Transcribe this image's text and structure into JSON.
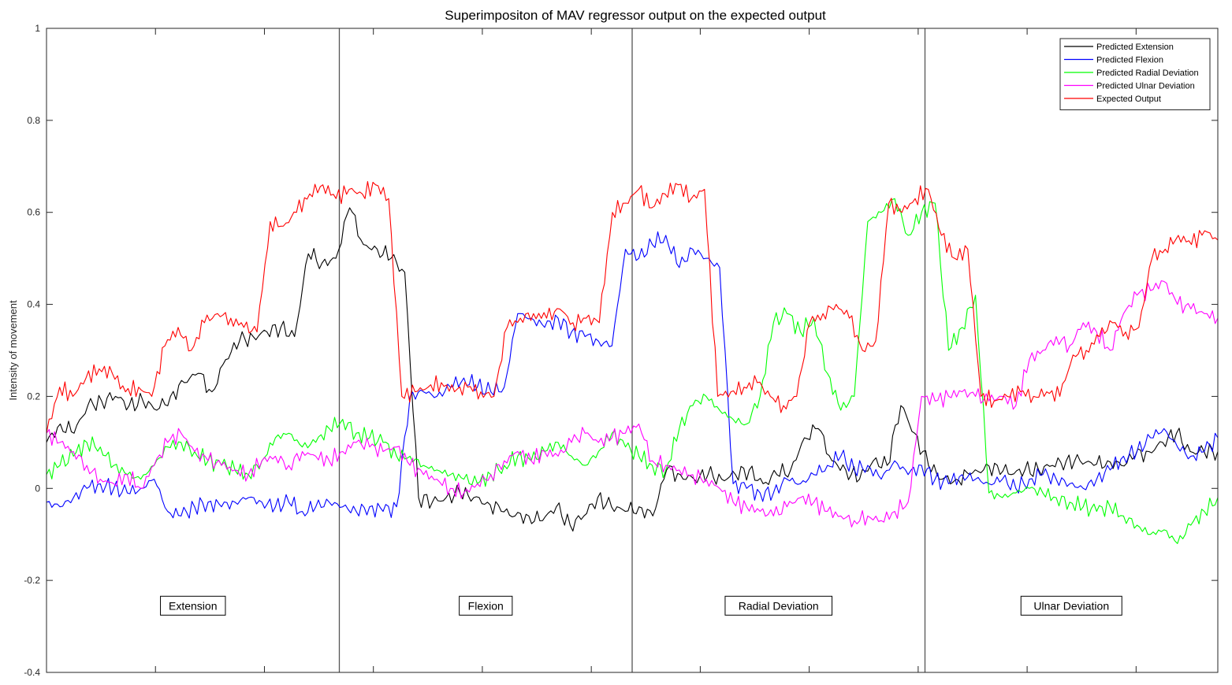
{
  "chart_data": {
    "type": "line",
    "title": "Superimpositon of MAV regressor output on the expected output",
    "xlabel": "",
    "ylabel": "Intensity of movement",
    "ylim": [
      -0.4,
      1
    ],
    "yticks": [
      "1",
      "0.8",
      "0.6",
      "0.4",
      "0.2",
      "0",
      "-0.2",
      "-0.4"
    ],
    "xticks_labeled": false,
    "grid": false,
    "legend_position": "top-right",
    "segments": [
      "Extension",
      "Flexion",
      "Radial Deviation",
      "Ulnar Deviation"
    ],
    "series": [
      {
        "name": "Predicted Extension",
        "color": "#000000",
        "values": [
          0.1,
          0.14,
          0.12,
          0.18,
          0.19,
          0.2,
          0.18,
          0.19,
          0.17,
          0.2,
          0.23,
          0.25,
          0.21,
          0.28,
          0.32,
          0.33,
          0.34,
          0.35,
          0.33,
          0.51,
          0.49,
          0.5,
          0.61,
          0.53,
          0.52,
          0.5,
          0.47,
          -0.02,
          -0.03,
          -0.02,
          -0.01,
          -0.02,
          -0.03,
          -0.05,
          -0.06,
          -0.06,
          -0.07,
          -0.04,
          -0.08,
          -0.06,
          -0.02,
          -0.04,
          -0.05,
          -0.04,
          -0.06,
          0.04,
          0.03,
          0.02,
          0.03,
          0.02,
          0.03,
          0.04,
          0.01,
          0.03,
          0.04,
          0.11,
          0.13,
          0.06,
          0.04,
          0.02,
          0.06,
          0.05,
          0.18,
          0.12,
          0.05,
          0.02,
          0.02,
          0.03,
          0.04,
          0.05,
          0.03,
          0.04,
          0.04,
          0.05,
          0.06,
          0.06,
          0.05,
          0.06,
          0.05,
          0.07,
          0.08,
          0.1,
          0.12,
          0.08,
          0.08,
          0.08
        ]
      },
      {
        "name": "Predicted Flexion",
        "color": "#0000ff",
        "values": [
          -0.03,
          -0.04,
          -0.02,
          0.0,
          0.01,
          0.0,
          -0.01,
          0.0,
          0.02,
          -0.05,
          -0.06,
          -0.04,
          -0.03,
          -0.04,
          -0.03,
          -0.02,
          -0.03,
          -0.04,
          -0.03,
          -0.05,
          -0.04,
          -0.03,
          -0.04,
          -0.05,
          -0.04,
          -0.05,
          -0.04,
          0.2,
          0.21,
          0.2,
          0.22,
          0.24,
          0.22,
          0.21,
          0.22,
          0.38,
          0.37,
          0.35,
          0.37,
          0.34,
          0.33,
          0.32,
          0.31,
          0.52,
          0.5,
          0.53,
          0.55,
          0.48,
          0.52,
          0.5,
          0.48,
          0.01,
          0.0,
          -0.01,
          -0.01,
          0.02,
          0.01,
          0.03,
          0.05,
          0.07,
          0.04,
          0.05,
          0.02,
          0.06,
          0.03,
          0.05,
          0.02,
          0.01,
          0.03,
          0.02,
          0.01,
          0.02,
          0.0,
          0.02,
          0.03,
          0.02,
          0.01,
          0.0,
          0.02,
          0.04,
          0.07,
          0.08,
          0.11,
          0.13,
          0.09,
          0.07,
          0.08,
          0.11
        ]
      },
      {
        "name": "Predicted Radial Deviation",
        "color": "#00ff00",
        "values": [
          0.03,
          0.05,
          0.07,
          0.1,
          0.09,
          0.05,
          0.03,
          0.02,
          0.05,
          0.09,
          0.1,
          0.08,
          0.06,
          0.05,
          0.04,
          0.03,
          0.06,
          0.11,
          0.12,
          0.09,
          0.1,
          0.13,
          0.15,
          0.12,
          0.11,
          0.1,
          0.07,
          0.07,
          0.05,
          0.04,
          0.03,
          0.02,
          0.01,
          0.03,
          0.05,
          0.07,
          0.06,
          0.08,
          0.1,
          0.07,
          0.05,
          0.08,
          0.12,
          0.09,
          0.07,
          0.05,
          0.04,
          0.13,
          0.18,
          0.2,
          0.17,
          0.15,
          0.14,
          0.2,
          0.36,
          0.38,
          0.34,
          0.37,
          0.25,
          0.17,
          0.2,
          0.58,
          0.6,
          0.63,
          0.55,
          0.6,
          0.62,
          0.3,
          0.35,
          0.42,
          -0.01,
          -0.02,
          -0.01,
          0.0,
          -0.01,
          -0.02,
          -0.03,
          -0.04,
          -0.05,
          -0.04,
          -0.06,
          -0.08,
          -0.1,
          -0.09,
          -0.12,
          -0.08,
          -0.05,
          -0.02
        ]
      },
      {
        "name": "Predicted Ulnar Deviation",
        "color": "#ff00ff",
        "values": [
          0.12,
          0.1,
          0.08,
          0.05,
          0.02,
          0.01,
          0.03,
          0.0,
          0.05,
          0.1,
          0.12,
          0.08,
          0.06,
          0.05,
          0.04,
          0.03,
          0.06,
          0.07,
          0.05,
          0.08,
          0.07,
          0.06,
          0.08,
          0.1,
          0.09,
          0.08,
          0.09,
          0.05,
          0.03,
          0.02,
          0.0,
          -0.01,
          0.01,
          0.03,
          0.06,
          0.08,
          0.06,
          0.08,
          0.07,
          0.1,
          0.12,
          0.1,
          0.11,
          0.12,
          0.14,
          0.06,
          0.05,
          0.04,
          0.03,
          0.02,
          0.0,
          -0.03,
          -0.04,
          -0.05,
          -0.06,
          -0.04,
          -0.02,
          -0.03,
          -0.05,
          -0.06,
          -0.07,
          -0.06,
          -0.07,
          -0.05,
          -0.03,
          0.2,
          0.19,
          0.2,
          0.21,
          0.2,
          0.19,
          0.2,
          0.18,
          0.28,
          0.3,
          0.33,
          0.31,
          0.36,
          0.34,
          0.3,
          0.38,
          0.42,
          0.43,
          0.45,
          0.4,
          0.39,
          0.38,
          0.37
        ]
      },
      {
        "name": "Expected Output",
        "color": "#ff0000",
        "values": [
          0.12,
          0.22,
          0.2,
          0.24,
          0.26,
          0.25,
          0.21,
          0.22,
          0.2,
          0.31,
          0.35,
          0.3,
          0.36,
          0.38,
          0.37,
          0.35,
          0.34,
          0.58,
          0.57,
          0.6,
          0.64,
          0.66,
          0.63,
          0.65,
          0.64,
          0.66,
          0.63,
          0.2,
          0.21,
          0.22,
          0.23,
          0.21,
          0.22,
          0.21,
          0.2,
          0.35,
          0.37,
          0.38,
          0.37,
          0.39,
          0.36,
          0.37,
          0.36,
          0.6,
          0.62,
          0.65,
          0.61,
          0.64,
          0.66,
          0.63,
          0.65,
          0.2,
          0.21,
          0.22,
          0.23,
          0.2,
          0.18,
          0.2,
          0.36,
          0.38,
          0.4,
          0.37,
          0.3,
          0.32,
          0.62,
          0.6,
          0.63,
          0.65,
          0.55,
          0.5,
          0.52,
          0.2,
          0.19,
          0.2,
          0.21,
          0.2,
          0.21,
          0.2,
          0.29,
          0.3,
          0.33,
          0.36,
          0.34,
          0.35,
          0.5,
          0.52,
          0.55,
          0.53,
          0.56,
          0.54
        ]
      }
    ]
  }
}
